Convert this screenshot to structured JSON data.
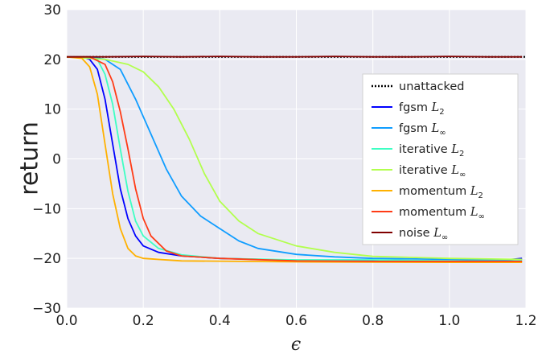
{
  "chart_data": {
    "type": "line",
    "title": "",
    "xlabel": "ϵ",
    "ylabel": "return",
    "xlim": [
      0.0,
      1.2
    ],
    "ylim": [
      -30,
      30
    ],
    "xticks": [
      "0.0",
      "0.2",
      "0.4",
      "0.6",
      "0.8",
      "1.0",
      "1.2"
    ],
    "yticks": [
      "−30",
      "−20",
      "−10",
      "0",
      "10",
      "20",
      "30"
    ],
    "grid": true,
    "legend_position": "center-right",
    "series": [
      {
        "name": "unattacked",
        "legend": {
          "text": "unattacked",
          "sub": ""
        },
        "color": "#000000",
        "dash": "dotted",
        "points": [
          [
            0.0,
            20.5
          ],
          [
            0.3,
            20.5
          ],
          [
            0.6,
            20.5
          ],
          [
            0.9,
            20.5
          ],
          [
            1.2,
            20.5
          ]
        ]
      },
      {
        "name": "fgsm L2",
        "legend": {
          "text": "fgsm L",
          "sub": "2"
        },
        "color": "#0000ff",
        "dash": "solid",
        "points": [
          [
            0.0,
            20.5
          ],
          [
            0.04,
            20.5
          ],
          [
            0.06,
            20.0
          ],
          [
            0.08,
            18.0
          ],
          [
            0.1,
            12.0
          ],
          [
            0.12,
            3.0
          ],
          [
            0.14,
            -6.0
          ],
          [
            0.16,
            -12.0
          ],
          [
            0.18,
            -15.5
          ],
          [
            0.2,
            -17.5
          ],
          [
            0.24,
            -18.8
          ],
          [
            0.3,
            -19.5
          ],
          [
            0.4,
            -20.0
          ],
          [
            0.6,
            -20.4
          ],
          [
            0.8,
            -20.5
          ],
          [
            1.0,
            -20.5
          ],
          [
            1.15,
            -20.3
          ],
          [
            1.19,
            -20.0
          ]
        ]
      },
      {
        "name": "fgsm L∞",
        "legend": {
          "text": "fgsm L",
          "sub": "∞"
        },
        "color": "#109dff",
        "dash": "solid",
        "points": [
          [
            0.0,
            20.5
          ],
          [
            0.06,
            20.5
          ],
          [
            0.1,
            20.0
          ],
          [
            0.14,
            18.0
          ],
          [
            0.18,
            12.0
          ],
          [
            0.22,
            5.0
          ],
          [
            0.26,
            -2.0
          ],
          [
            0.3,
            -7.5
          ],
          [
            0.35,
            -11.5
          ],
          [
            0.4,
            -14.0
          ],
          [
            0.45,
            -16.5
          ],
          [
            0.5,
            -18.0
          ],
          [
            0.6,
            -19.2
          ],
          [
            0.7,
            -19.7
          ],
          [
            0.8,
            -20.0
          ],
          [
            1.0,
            -20.2
          ],
          [
            1.19,
            -20.2
          ]
        ]
      },
      {
        "name": "iterative L2",
        "legend": {
          "text": "iterative L",
          "sub": "2"
        },
        "color": "#3dffc3",
        "dash": "solid",
        "points": [
          [
            0.0,
            20.5
          ],
          [
            0.04,
            20.5
          ],
          [
            0.08,
            20.0
          ],
          [
            0.1,
            17.0
          ],
          [
            0.12,
            11.0
          ],
          [
            0.14,
            2.0
          ],
          [
            0.16,
            -6.5
          ],
          [
            0.18,
            -12.5
          ],
          [
            0.2,
            -15.5
          ],
          [
            0.24,
            -18.0
          ],
          [
            0.3,
            -19.3
          ],
          [
            0.4,
            -20.0
          ],
          [
            0.6,
            -20.3
          ],
          [
            0.8,
            -20.3
          ],
          [
            1.0,
            -20.5
          ],
          [
            1.19,
            -20.5
          ]
        ]
      },
      {
        "name": "iterative L∞",
        "legend": {
          "text": "iterative L",
          "sub": "∞"
        },
        "color": "#b2ff4d",
        "dash": "solid",
        "points": [
          [
            0.0,
            20.5
          ],
          [
            0.1,
            20.0
          ],
          [
            0.16,
            19.0
          ],
          [
            0.2,
            17.5
          ],
          [
            0.24,
            14.5
          ],
          [
            0.28,
            10.0
          ],
          [
            0.32,
            4.0
          ],
          [
            0.36,
            -3.0
          ],
          [
            0.4,
            -8.5
          ],
          [
            0.45,
            -12.5
          ],
          [
            0.5,
            -15.0
          ],
          [
            0.6,
            -17.5
          ],
          [
            0.7,
            -18.8
          ],
          [
            0.8,
            -19.6
          ],
          [
            1.0,
            -20.0
          ],
          [
            1.19,
            -20.2
          ]
        ]
      },
      {
        "name": "momentum L2",
        "legend": {
          "text": "momentum L",
          "sub": "2"
        },
        "color": "#ffb100",
        "dash": "solid",
        "points": [
          [
            0.0,
            20.5
          ],
          [
            0.04,
            20.2
          ],
          [
            0.06,
            18.5
          ],
          [
            0.08,
            13.0
          ],
          [
            0.1,
            3.0
          ],
          [
            0.12,
            -7.0
          ],
          [
            0.14,
            -14.0
          ],
          [
            0.16,
            -18.0
          ],
          [
            0.18,
            -19.5
          ],
          [
            0.2,
            -20.0
          ],
          [
            0.3,
            -20.5
          ],
          [
            0.6,
            -20.7
          ],
          [
            1.0,
            -20.8
          ],
          [
            1.19,
            -20.8
          ]
        ]
      },
      {
        "name": "momentum L∞",
        "legend": {
          "text": "momentum L",
          "sub": "∞"
        },
        "color": "#ff3b16",
        "dash": "solid",
        "points": [
          [
            0.0,
            20.5
          ],
          [
            0.06,
            20.5
          ],
          [
            0.1,
            19.0
          ],
          [
            0.12,
            15.5
          ],
          [
            0.14,
            9.5
          ],
          [
            0.16,
            2.0
          ],
          [
            0.18,
            -6.0
          ],
          [
            0.2,
            -12.0
          ],
          [
            0.22,
            -15.5
          ],
          [
            0.26,
            -18.5
          ],
          [
            0.3,
            -19.5
          ],
          [
            0.4,
            -20.0
          ],
          [
            0.6,
            -20.5
          ],
          [
            0.8,
            -20.6
          ],
          [
            1.0,
            -20.6
          ],
          [
            1.19,
            -20.6
          ]
        ]
      },
      {
        "name": "noise L∞",
        "legend": {
          "text": "noise L",
          "sub": "∞"
        },
        "color": "#800000",
        "dash": "solid",
        "points": [
          [
            0.0,
            20.5
          ],
          [
            0.1,
            20.5
          ],
          [
            0.2,
            20.6
          ],
          [
            0.3,
            20.5
          ],
          [
            0.4,
            20.6
          ],
          [
            0.5,
            20.5
          ],
          [
            0.6,
            20.5
          ],
          [
            0.7,
            20.6
          ],
          [
            0.8,
            20.5
          ],
          [
            0.9,
            20.5
          ],
          [
            1.0,
            20.6
          ],
          [
            1.1,
            20.5
          ],
          [
            1.19,
            20.5
          ]
        ]
      }
    ]
  }
}
